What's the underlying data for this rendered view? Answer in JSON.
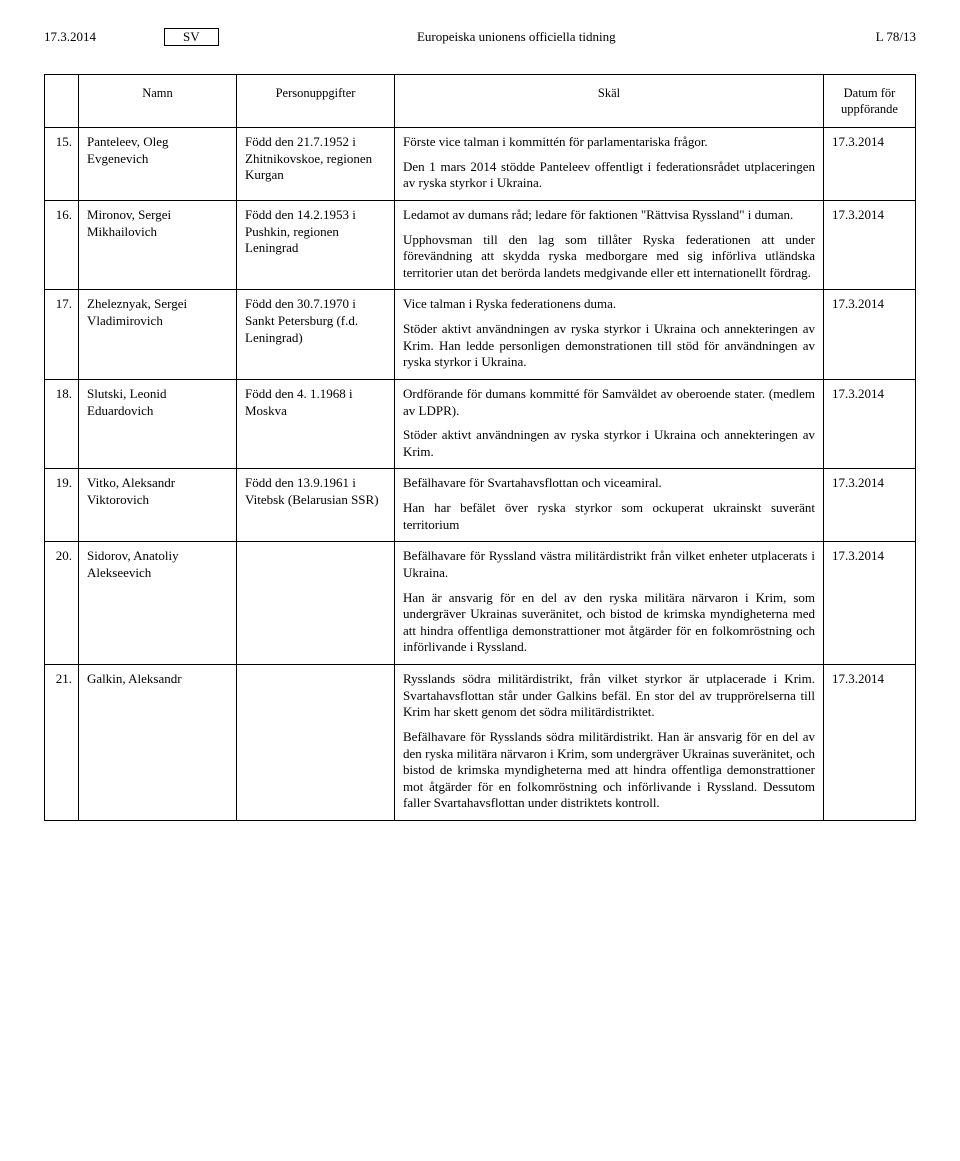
{
  "header": {
    "date_left": "17.3.2014",
    "lang_box": "SV",
    "center": "Europeiska unionens officiella tidning",
    "right": "L 78/13"
  },
  "table": {
    "headers": {
      "num": "",
      "name": "Namn",
      "pers": "Personuppgifter",
      "reason": "Skäl",
      "date": "Datum för uppförande"
    },
    "rows": [
      {
        "num": "15.",
        "name": "Panteleev, Oleg Evgenevich",
        "pers": "Född den 21.7.1952 i Zhitnikovskoe, regionen Kurgan",
        "reason": [
          "Förste vice talman i kommittén för parlamentariska frågor.",
          "Den 1 mars 2014 stödde Panteleev offentligt i federationsrådet utplaceringen av ryska styrkor i Ukraina."
        ],
        "date": "17.3.2014"
      },
      {
        "num": "16.",
        "name": "Mironov, Sergei Mikhailovich",
        "pers": "Född den 14.2.1953 i Pushkin, regionen Leningrad",
        "reason": [
          "Ledamot av dumans råd; ledare för faktionen \"Rättvisa Ryssland\" i duman.",
          "Upphovsman till den lag som tillåter Ryska federationen att under förevändning att skydda ryska medborgare med sig införliva utländska territorier utan det berörda landets medgivande eller ett internationellt fördrag."
        ],
        "date": "17.3.2014"
      },
      {
        "num": "17.",
        "name": "Zheleznyak, Sergei Vladimirovich",
        "pers": "Född den 30.7.1970 i Sankt Petersburg (f.d. Leningrad)",
        "reason": [
          "Vice talman i Ryska federationens duma.",
          "Stöder aktivt användningen av ryska styrkor i Ukraina och annekteringen av Krim. Han ledde personligen demonstrationen till stöd för användningen av ryska styrkor i Ukraina."
        ],
        "date": "17.3.2014"
      },
      {
        "num": "18.",
        "name": "Slutski, Leonid Eduardovich",
        "pers": "Född den 4. 1.1968 i Moskva",
        "reason": [
          "Ordförande för dumans kommitté för Samväldet av oberoende stater. (medlem av LDPR).",
          "Stöder aktivt användningen av ryska styrkor i Ukraina och annekteringen av Krim."
        ],
        "date": "17.3.2014"
      },
      {
        "num": "19.",
        "name": "Vitko, Aleksandr Viktorovich",
        "pers": "Född den 13.9.1961 i Vitebsk (Belarusian SSR)",
        "reason": [
          "Befälhavare för Svartahavsflottan och viceamiral.",
          "Han har befälet över ryska styrkor som ockuperat ukrainskt suveränt territorium"
        ],
        "date": "17.3.2014"
      },
      {
        "num": "20.",
        "name": "Sidorov, Anatoliy Alekseevich",
        "pers": "",
        "reason": [
          "Befälhavare för Ryssland västra militärdistrikt från vilket enheter utplacerats i Ukraina.",
          "Han är ansvarig för en del av den ryska militära närvaron i Krim, som undergräver Ukrainas suveränitet, och bistod de krimska myndigheterna med att hindra offentliga demonstrattioner mot åtgärder för en folkomröstning och införlivande i Ryssland."
        ],
        "date": "17.3.2014"
      },
      {
        "num": "21.",
        "name": "Galkin, Aleksandr",
        "pers": "",
        "reason": [
          "Rysslands södra militärdistrikt, från vilket styrkor är utplacerade i Krim. Svartahavsflottan står under Galkins befäl. En stor del av trupprörelserna till Krim har skett genom det södra militärdistriktet.",
          "Befälhavare för Rysslands södra militärdistrikt. Han är ansvarig för en del av den ryska militära närvaron i Krim, som undergräver Ukrainas suveränitet, och bistod de krimska myndigheterna med att hindra offentliga demonstrattioner mot åtgärder för en folkomröstning och införlivande i Ryssland. Dessutom faller Svartahavsflottan under distriktets kontroll."
        ],
        "date": "17.3.2014"
      }
    ]
  }
}
